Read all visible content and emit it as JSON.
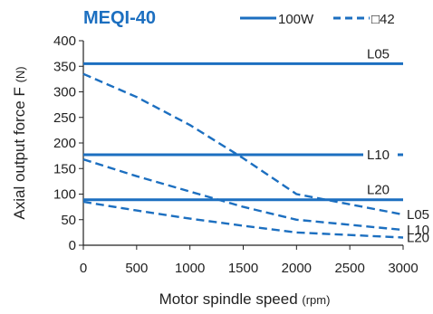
{
  "colors": {
    "series": "#1c6fc0",
    "axis": "#222222",
    "title": "#1c6fc0"
  },
  "chart_data": {
    "type": "line",
    "title": "MEQI-40",
    "xlabel": "Motor spindle speed",
    "xlabel_unit": "(rpm)",
    "ylabel": "Axial output force F",
    "ylabel_unit": "(N)",
    "xlim": [
      0,
      3000
    ],
    "ylim": [
      0,
      400
    ],
    "xticks": [
      0,
      500,
      1000,
      1500,
      2000,
      2500,
      3000
    ],
    "yticks": [
      0,
      50,
      100,
      150,
      200,
      250,
      300,
      350,
      400
    ],
    "grid": false,
    "legend": [
      {
        "label": "100W",
        "style": "solid"
      },
      {
        "label": "□42",
        "style": "dashed"
      }
    ],
    "series": [
      {
        "name": "L05",
        "legend": "100W",
        "style": "solid",
        "x": [
          0,
          3000
        ],
        "y": [
          355,
          355
        ]
      },
      {
        "name": "L10",
        "legend": "100W",
        "style": "solid",
        "x": [
          0,
          3000
        ],
        "y": [
          177,
          177
        ]
      },
      {
        "name": "L20",
        "legend": "100W",
        "style": "solid",
        "x": [
          0,
          3000
        ],
        "y": [
          89,
          89
        ]
      },
      {
        "name": "L05",
        "legend": "□42",
        "style": "dashed",
        "x": [
          0,
          500,
          1000,
          1500,
          2000,
          2500,
          3000
        ],
        "y": [
          335,
          290,
          235,
          170,
          100,
          80,
          60
        ]
      },
      {
        "name": "L10",
        "legend": "□42",
        "style": "dashed",
        "x": [
          0,
          500,
          1000,
          1500,
          2000,
          2500,
          3000
        ],
        "y": [
          168,
          135,
          105,
          75,
          50,
          40,
          30
        ]
      },
      {
        "name": "L20",
        "legend": "□42",
        "style": "dashed",
        "x": [
          0,
          500,
          1000,
          1500,
          2000,
          2500,
          3000
        ],
        "y": [
          85,
          68,
          52,
          38,
          25,
          20,
          15
        ]
      }
    ],
    "line_labels": [
      {
        "text": "L05",
        "series": "solid",
        "at": 355
      },
      {
        "text": "L10",
        "series": "solid",
        "at": 177
      },
      {
        "text": "L20",
        "series": "solid",
        "at": 89
      },
      {
        "text": "L05",
        "series": "dashed",
        "at": 60
      },
      {
        "text": "L10",
        "series": "dashed",
        "at": 30
      },
      {
        "text": "L20",
        "series": "dashed",
        "at": 15
      }
    ]
  }
}
